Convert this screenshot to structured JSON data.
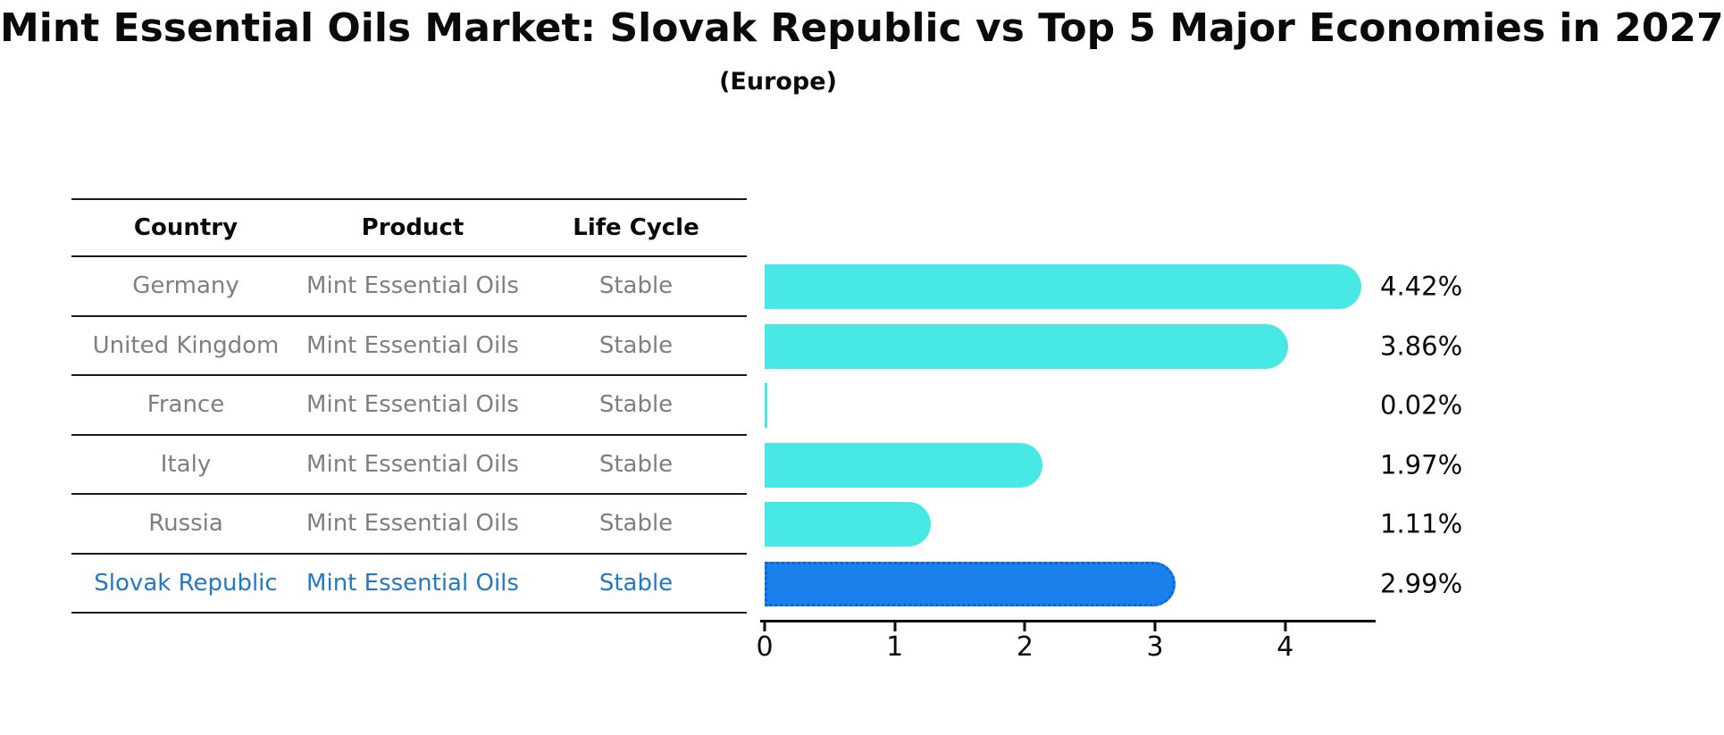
{
  "title": "Mint Essential Oils Market: Slovak Republic vs Top 5 Major Economies in 2027",
  "subtitle": "(Europe)",
  "table": {
    "headers": [
      "Country",
      "Product",
      "Life Cycle"
    ],
    "rows": [
      {
        "country": "Germany",
        "product": "Mint Essential Oils",
        "life_cycle": "Stable",
        "highlighted": false
      },
      {
        "country": "United Kingdom",
        "product": "Mint Essential Oils",
        "life_cycle": "Stable",
        "highlighted": false
      },
      {
        "country": "France",
        "product": "Mint Essential Oils",
        "life_cycle": "Stable",
        "highlighted": false
      },
      {
        "country": "Italy",
        "product": "Mint Essential Oils",
        "life_cycle": "Stable",
        "highlighted": false
      },
      {
        "country": "Russia",
        "product": "Mint Essential Oils",
        "life_cycle": "Stable",
        "highlighted": false
      },
      {
        "country": "Slovak Republic",
        "product": "Mint Essential Oils",
        "life_cycle": "Stable",
        "highlighted": true
      }
    ],
    "text_color": "#7f7f7f",
    "highlight_text_color": "#2478C8",
    "line_color": "#1a1a1a"
  },
  "chart_data": {
    "type": "bar",
    "orientation": "horizontal",
    "title": "Mint Essential Oils Market: Slovak Republic vs Top 5 Major Economies in 2027",
    "subtitle": "(Europe)",
    "categories": [
      "Germany",
      "United Kingdom",
      "France",
      "Italy",
      "Russia",
      "Slovak Republic"
    ],
    "values": [
      4.42,
      3.86,
      0.02,
      1.97,
      1.11,
      2.99
    ],
    "value_labels": [
      "4.42%",
      "3.86%",
      "0.02%",
      "1.97%",
      "1.11%",
      "2.99%"
    ],
    "unit_suffix": "%",
    "x_ticks": [
      0,
      1,
      2,
      3,
      4
    ],
    "xlim": [
      0,
      4.67
    ],
    "grid": false,
    "legend": false,
    "bar_color": "#48E8E4",
    "highlight_color": "#1A80EC",
    "highlight_border_color": "#0D66D6",
    "highlight_index": 5
  }
}
